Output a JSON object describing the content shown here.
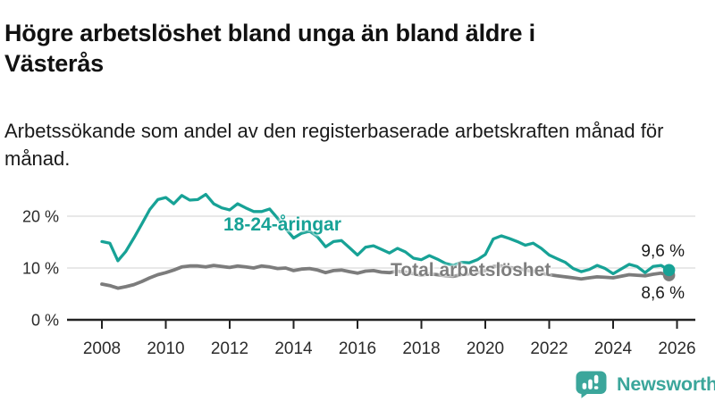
{
  "header": {
    "title": "Högre arbetslöshet bland unga än bland äldre i Västerås",
    "subtitle": "Arbetssökande som andel av den registerbaserade arbetskraften månad för månad."
  },
  "chart_data": {
    "type": "line",
    "title": "Högre arbetslöshet bland unga än bland äldre i Västerås",
    "ylabel": "",
    "xlabel": "",
    "y_unit": "%",
    "grid": "horizontal",
    "legend_position": "inline-labels",
    "xlim": [
      2008,
      2026.4
    ],
    "ylim": [
      0,
      25
    ],
    "xticks": [
      2008,
      2010,
      2012,
      2014,
      2016,
      2018,
      2020,
      2022,
      2024,
      2026
    ],
    "yticks": [
      0,
      10,
      20
    ],
    "ytick_labels": [
      "0 %",
      "10 %",
      "20 %"
    ],
    "x_start": 2008.0,
    "x_step": 0.25,
    "x_end": 2025.75,
    "series": [
      {
        "name": "18-24-åringar",
        "color": "#17A296",
        "end_label": "9,6 %",
        "end_value": 9.6,
        "values": [
          15.1,
          14.8,
          11.4,
          13.2,
          15.8,
          18.5,
          21.3,
          23.2,
          23.6,
          22.4,
          24.0,
          23.1,
          23.2,
          24.2,
          22.4,
          21.6,
          21.2,
          22.4,
          21.6,
          20.9,
          20.9,
          21.4,
          19.6,
          17.6,
          15.8,
          16.7,
          17.1,
          16.0,
          14.1,
          15.1,
          15.3,
          13.9,
          12.5,
          14.0,
          14.3,
          13.6,
          12.9,
          13.8,
          13.1,
          11.9,
          11.6,
          12.4,
          11.7,
          10.9,
          10.5,
          11.1,
          11.0,
          11.6,
          12.6,
          15.6,
          16.2,
          15.7,
          15.1,
          14.4,
          14.8,
          13.8,
          12.5,
          11.8,
          11.1,
          9.9,
          9.3,
          9.7,
          10.5,
          9.9,
          8.9,
          9.8,
          10.7,
          10.3,
          9.1,
          10.3,
          10.5,
          9.6
        ]
      },
      {
        "name": "Total arbetslöshet",
        "color": "#7C7C7C",
        "end_label": "8,6 %",
        "end_value": 8.6,
        "values": [
          6.9,
          6.6,
          6.1,
          6.4,
          6.8,
          7.4,
          8.1,
          8.7,
          9.1,
          9.6,
          10.2,
          10.4,
          10.4,
          10.2,
          10.5,
          10.3,
          10.1,
          10.4,
          10.2,
          10.0,
          10.4,
          10.2,
          9.9,
          10.0,
          9.5,
          9.8,
          9.9,
          9.6,
          9.1,
          9.5,
          9.6,
          9.3,
          9.0,
          9.4,
          9.5,
          9.2,
          9.1,
          9.4,
          9.2,
          8.9,
          8.6,
          8.9,
          8.7,
          8.5,
          8.4,
          8.7,
          8.9,
          9.1,
          9.5,
          10.3,
          10.4,
          10.1,
          9.9,
          9.6,
          9.4,
          9.0,
          8.7,
          8.5,
          8.3,
          8.1,
          7.9,
          8.1,
          8.3,
          8.2,
          8.1,
          8.4,
          8.7,
          8.6,
          8.5,
          8.8,
          9.0,
          8.6
        ]
      }
    ]
  },
  "branding": {
    "logo_text": "Newsworthy",
    "logo_color": "#3BA69B",
    "logo_icon": "bar-chart-speech-bubble-icon"
  }
}
